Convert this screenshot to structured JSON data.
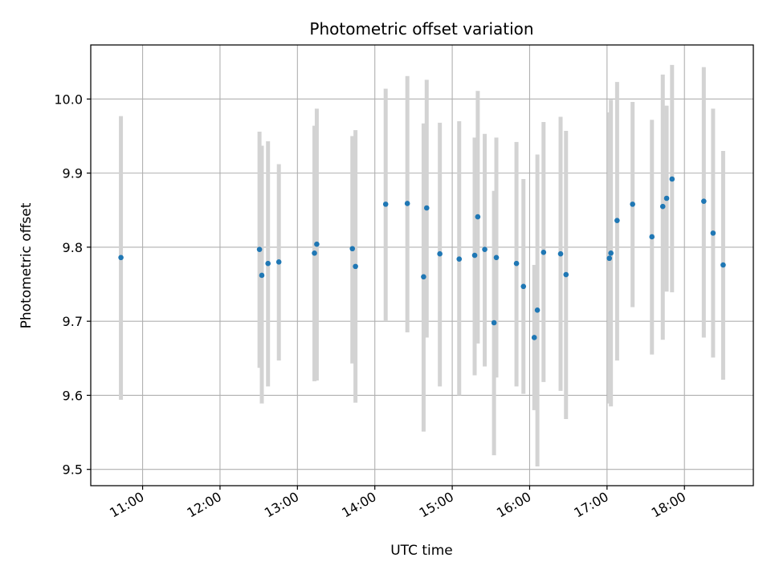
{
  "chart_data": {
    "type": "scatter",
    "title": "Photometric offset variation",
    "xlabel": "UTC time",
    "ylabel": "Photometric offset",
    "x_unit": "hours UTC",
    "xlim": [
      10.33,
      18.89
    ],
    "ylim": [
      9.478,
      10.073
    ],
    "x_ticks": [
      11,
      12,
      13,
      14,
      15,
      16,
      17,
      18
    ],
    "x_tick_labels": [
      "11:00",
      "12:00",
      "13:00",
      "14:00",
      "15:00",
      "16:00",
      "17:00",
      "18:00"
    ],
    "y_ticks": [
      9.5,
      9.6,
      9.7,
      9.8,
      9.9,
      10.0
    ],
    "y_tick_labels": [
      "9.5",
      "9.6",
      "9.7",
      "9.8",
      "9.9",
      "10.0"
    ],
    "grid": true,
    "point_color": "#1f77b4",
    "errorbar_color": "#d3d3d3",
    "points": [
      {
        "x": 10.72,
        "y": 9.786,
        "lo": 9.594,
        "hi": 9.977
      },
      {
        "x": 12.51,
        "y": 9.797,
        "lo": 9.637,
        "hi": 9.956
      },
      {
        "x": 12.54,
        "y": 9.762,
        "lo": 9.589,
        "hi": 9.937
      },
      {
        "x": 12.62,
        "y": 9.778,
        "lo": 9.612,
        "hi": 9.943
      },
      {
        "x": 12.76,
        "y": 9.78,
        "lo": 9.647,
        "hi": 9.912
      },
      {
        "x": 13.22,
        "y": 9.792,
        "lo": 9.619,
        "hi": 9.964
      },
      {
        "x": 13.25,
        "y": 9.804,
        "lo": 9.62,
        "hi": 9.987
      },
      {
        "x": 13.71,
        "y": 9.798,
        "lo": 9.643,
        "hi": 9.95
      },
      {
        "x": 13.75,
        "y": 9.774,
        "lo": 9.59,
        "hi": 9.958
      },
      {
        "x": 14.14,
        "y": 9.858,
        "lo": 9.7,
        "hi": 10.014
      },
      {
        "x": 14.42,
        "y": 9.859,
        "lo": 9.685,
        "hi": 10.031
      },
      {
        "x": 14.63,
        "y": 9.76,
        "lo": 9.551,
        "hi": 9.967
      },
      {
        "x": 14.67,
        "y": 9.853,
        "lo": 9.678,
        "hi": 10.026
      },
      {
        "x": 14.84,
        "y": 9.791,
        "lo": 9.612,
        "hi": 9.968
      },
      {
        "x": 15.09,
        "y": 9.784,
        "lo": 9.6,
        "hi": 9.97
      },
      {
        "x": 15.29,
        "y": 9.789,
        "lo": 9.627,
        "hi": 9.948
      },
      {
        "x": 15.33,
        "y": 9.841,
        "lo": 9.67,
        "hi": 10.011
      },
      {
        "x": 15.42,
        "y": 9.797,
        "lo": 9.639,
        "hi": 9.953
      },
      {
        "x": 15.54,
        "y": 9.698,
        "lo": 9.519,
        "hi": 9.876
      },
      {
        "x": 15.57,
        "y": 9.786,
        "lo": 9.624,
        "hi": 9.948
      },
      {
        "x": 15.83,
        "y": 9.778,
        "lo": 9.612,
        "hi": 9.942
      },
      {
        "x": 15.92,
        "y": 9.747,
        "lo": 9.602,
        "hi": 9.892
      },
      {
        "x": 16.06,
        "y": 9.678,
        "lo": 9.58,
        "hi": 9.776
      },
      {
        "x": 16.1,
        "y": 9.715,
        "lo": 9.504,
        "hi": 9.925
      },
      {
        "x": 16.18,
        "y": 9.793,
        "lo": 9.618,
        "hi": 9.969
      },
      {
        "x": 16.4,
        "y": 9.791,
        "lo": 9.606,
        "hi": 9.976
      },
      {
        "x": 16.47,
        "y": 9.763,
        "lo": 9.568,
        "hi": 9.957
      },
      {
        "x": 17.03,
        "y": 9.785,
        "lo": 9.589,
        "hi": 9.982
      },
      {
        "x": 17.05,
        "y": 9.792,
        "lo": 9.585,
        "hi": 9.999
      },
      {
        "x": 17.13,
        "y": 9.836,
        "lo": 9.647,
        "hi": 10.023
      },
      {
        "x": 17.33,
        "y": 9.858,
        "lo": 9.719,
        "hi": 9.996
      },
      {
        "x": 17.58,
        "y": 9.814,
        "lo": 9.655,
        "hi": 9.972
      },
      {
        "x": 17.72,
        "y": 9.855,
        "lo": 9.675,
        "hi": 10.033
      },
      {
        "x": 17.77,
        "y": 9.866,
        "lo": 9.74,
        "hi": 9.991
      },
      {
        "x": 17.84,
        "y": 9.892,
        "lo": 9.739,
        "hi": 10.046
      },
      {
        "x": 18.25,
        "y": 9.862,
        "lo": 9.678,
        "hi": 10.043
      },
      {
        "x": 18.37,
        "y": 9.819,
        "lo": 9.651,
        "hi": 9.987
      },
      {
        "x": 18.5,
        "y": 9.776,
        "lo": 9.621,
        "hi": 9.93
      }
    ]
  }
}
